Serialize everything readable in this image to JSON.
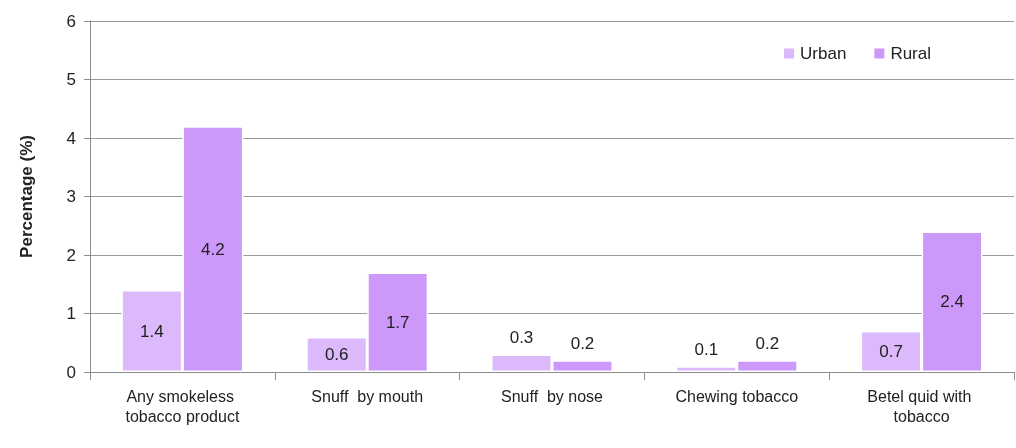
{
  "chart_data": {
    "type": "bar",
    "ylabel": "Percentage (%)",
    "categories": [
      "Any smokeless tobacco product",
      "Snuff  by mouth",
      "Snuff  by nose",
      "Chewing tobacco",
      "Betel quid with tobacco"
    ],
    "series": [
      {
        "name": "Urban",
        "color": "#dbb9fb",
        "values": [
          1.4,
          0.6,
          0.3,
          0.1,
          0.7
        ]
      },
      {
        "name": "Rural",
        "color": "#cc99fa",
        "values": [
          4.2,
          1.7,
          0.2,
          0.2,
          2.4
        ]
      }
    ],
    "ylim": [
      0,
      6
    ],
    "yticks": [
      0,
      1,
      2,
      3,
      4,
      5,
      6
    ],
    "grid": "y",
    "legend": "top right",
    "data_labels": true
  }
}
